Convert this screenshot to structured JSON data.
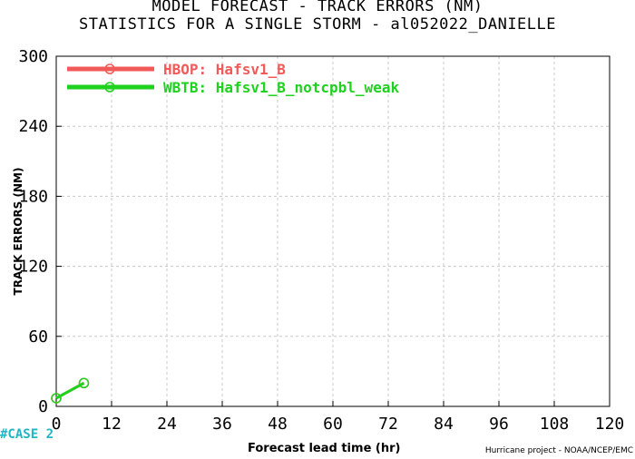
{
  "header": {
    "title": "MODEL FORECAST - TRACK ERRORS (NM)",
    "subtitle": "STATISTICS FOR A SINGLE STORM - al052022_DANIELLE"
  },
  "footer": {
    "case_label": "#CASE  2",
    "credit": "Hurricane project - NOAA/NCEP/EMC"
  },
  "chart_data": {
    "type": "line",
    "title": "MODEL FORECAST - TRACK ERRORS (NM)",
    "subtitle": "STATISTICS FOR A SINGLE STORM - al052022_DANIELLE",
    "xlabel": "Forecast lead time (hr)",
    "ylabel": "TRACK ERRORS (NM)",
    "xlim": [
      0,
      120
    ],
    "ylim": [
      0,
      300
    ],
    "xticks": [
      0,
      12,
      24,
      36,
      48,
      60,
      72,
      84,
      96,
      108,
      120
    ],
    "yticks": [
      0,
      60,
      120,
      180,
      240,
      300
    ],
    "xtick_labels": [
      "0",
      "12",
      "24",
      "36",
      "48",
      "60",
      "72",
      "84",
      "96",
      "108",
      "120"
    ],
    "ytick_labels": [
      "0",
      "60",
      "120",
      "180",
      "240",
      "300"
    ],
    "grid": true,
    "legend_position": "top-left",
    "series": [
      {
        "name": "HBOP: Hafsv1_B",
        "color": "#f25a5a",
        "x": [
          0,
          6
        ],
        "y": [
          7,
          20
        ]
      },
      {
        "name": "WBTB: Hafsv1_B_notcpbl_weak",
        "color": "#1ed21e",
        "x": [
          0,
          6
        ],
        "y": [
          7,
          20
        ]
      }
    ]
  }
}
